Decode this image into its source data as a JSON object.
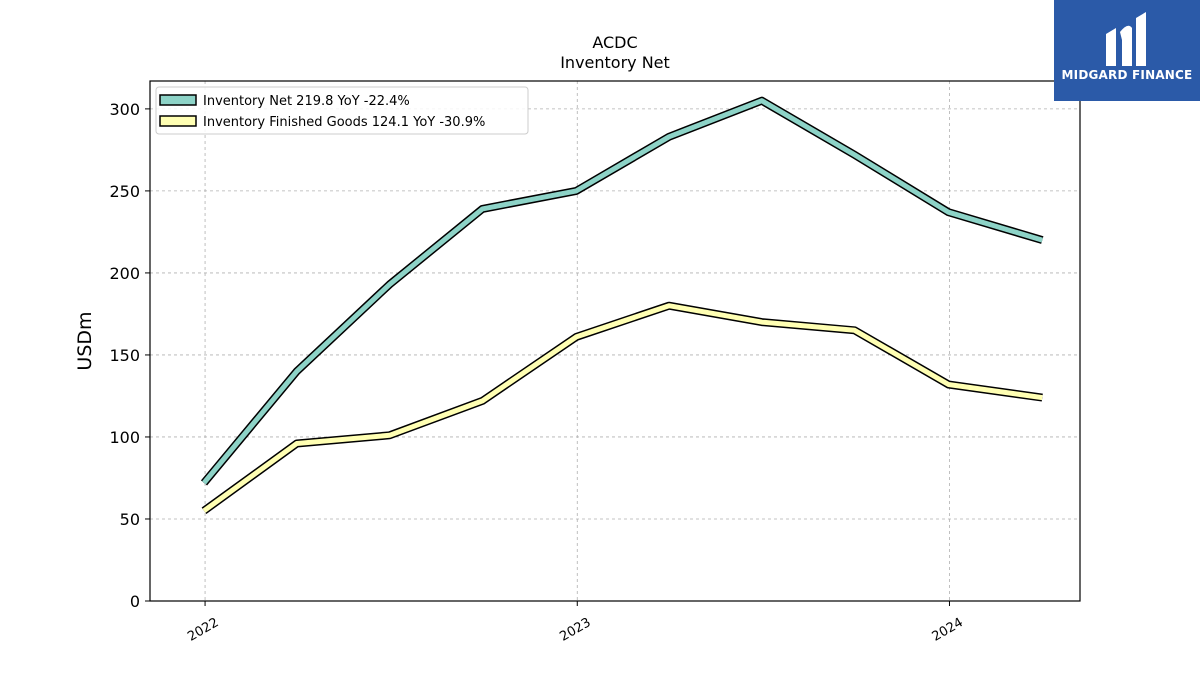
{
  "chart_data": {
    "type": "line",
    "title": "ACDC",
    "subtitle": "Inventory Net",
    "ylabel": "USDm",
    "xlabel": "",
    "ylim": [
      0,
      317
    ],
    "xlim": [
      "2021-11-08",
      "2024-05-08"
    ],
    "yticks": [
      0,
      50,
      100,
      150,
      200,
      250,
      300
    ],
    "xticks": [
      {
        "date": "2022-01-01",
        "label": "2022"
      },
      {
        "date": "2023-01-01",
        "label": "2023"
      },
      {
        "date": "2024-01-01",
        "label": "2024"
      }
    ],
    "grid": true,
    "legend_position": "top-left",
    "x": [
      "2021-12-31",
      "2022-04-01",
      "2022-07-01",
      "2022-09-30",
      "2022-12-31",
      "2023-04-01",
      "2023-07-01",
      "2023-09-30",
      "2023-12-31",
      "2024-04-01"
    ],
    "series": [
      {
        "name": "Inventory Net",
        "legend_label": "Inventory Net  219.8 YoY -22.4%",
        "color": "#8dd3c7",
        "values": [
          72,
          140,
          193,
          239,
          250,
          283,
          305,
          272,
          237,
          220
        ]
      },
      {
        "name": "Inventory Finished Goods",
        "legend_label": "Inventory Finished Goods  124.1 YoY -30.9%",
        "color": "#ffffb3",
        "values": [
          55,
          96,
          101,
          122,
          161,
          180,
          170,
          165,
          132,
          124
        ]
      }
    ]
  },
  "logo": {
    "text": "MIDGARD FINANCE",
    "bg_color": "#2b5aa8"
  }
}
